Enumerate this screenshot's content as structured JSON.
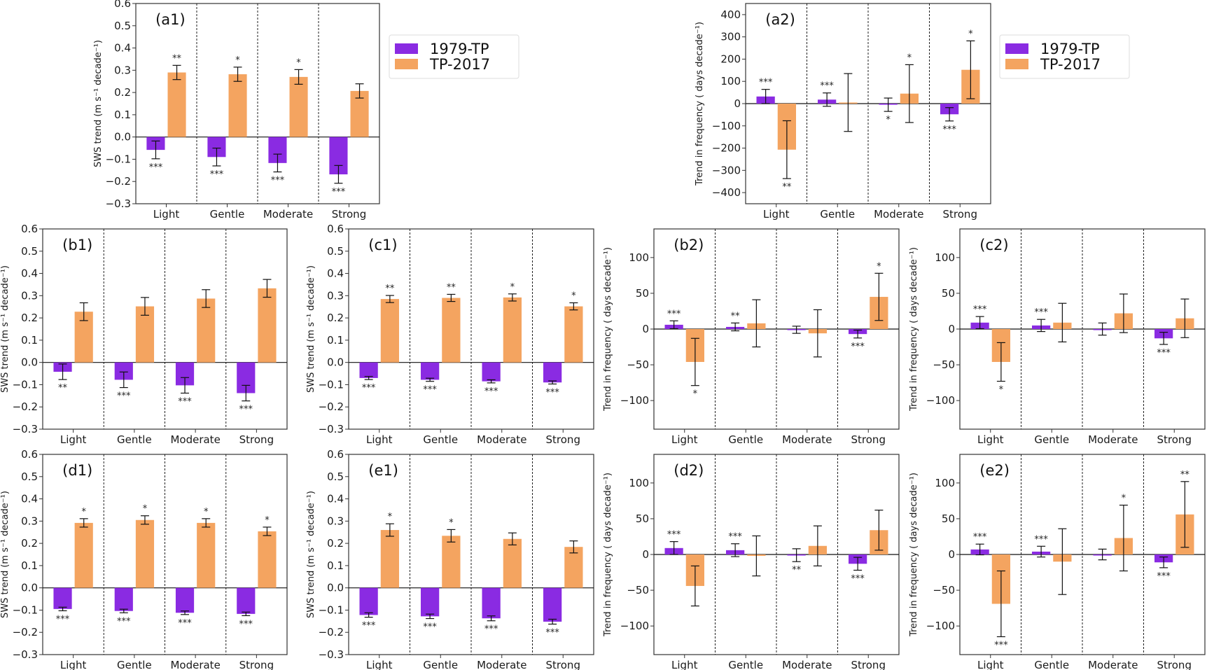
{
  "legend": [
    {
      "label": "1979-TP",
      "color": "#8a2be2"
    },
    {
      "label": "TP-2017",
      "color": "#f4a460"
    }
  ],
  "chart_data": [
    {
      "id": "a1",
      "type": "bar",
      "panel_label": "(a1)",
      "categories": [
        "Light",
        "Gentle",
        "Moderate",
        "Strong"
      ],
      "ylabel": "SWS trend (m s⁻¹ decade⁻¹)",
      "ylim": [
        -0.3,
        0.6
      ],
      "yticks": [
        -0.3,
        -0.2,
        -0.1,
        0.0,
        0.1,
        0.2,
        0.3,
        0.4,
        0.5,
        0.6
      ],
      "ytick_labels": [
        "−0.3",
        "−0.2",
        "−0.1",
        "0.0",
        "0.1",
        "0.2",
        "0.3",
        "0.4",
        "0.5",
        "0.6"
      ],
      "series": [
        {
          "name": "1979-TP",
          "values": [
            -0.058,
            -0.09,
            -0.117,
            -0.168
          ],
          "errors": [
            0.04,
            0.04,
            0.04,
            0.04
          ],
          "significance": [
            "***",
            "***",
            "***",
            "***"
          ]
        },
        {
          "name": "TP-2017",
          "values": [
            0.29,
            0.282,
            0.27,
            0.207
          ],
          "errors": [
            0.032,
            0.032,
            0.033,
            0.032
          ],
          "significance": [
            "**",
            "*",
            "*",
            ""
          ]
        }
      ]
    },
    {
      "id": "a2",
      "type": "bar",
      "panel_label": "(a2)",
      "categories": [
        "Light",
        "Gentle",
        "Moderate",
        "Strong"
      ],
      "ylabel": "Trend in frequency ( days decade⁻¹)",
      "ylim": [
        -450,
        450
      ],
      "yticks": [
        -400,
        -300,
        -200,
        -100,
        0,
        100,
        200,
        300,
        400
      ],
      "ytick_labels": [
        "−400",
        "−300",
        "−200",
        "−100",
        "0",
        "100",
        "200",
        "300",
        "400"
      ],
      "series": [
        {
          "name": "1979-TP",
          "values": [
            32,
            18,
            -5,
            -48
          ],
          "errors": [
            32,
            30,
            30,
            30
          ],
          "significance": [
            "***",
            "***",
            "*",
            "***"
          ]
        },
        {
          "name": "TP-2017",
          "values": [
            -207,
            5,
            45,
            152
          ],
          "errors": [
            130,
            130,
            130,
            130
          ],
          "significance": [
            "**",
            "",
            "*",
            "*"
          ]
        }
      ]
    },
    {
      "id": "b1",
      "type": "bar",
      "panel_label": "(b1)",
      "categories": [
        "Light",
        "Gentle",
        "Moderate",
        "Strong"
      ],
      "ylabel": "SWS trend (m s⁻¹ decade⁻¹)",
      "ylim": [
        -0.3,
        0.6
      ],
      "yticks": [
        -0.3,
        -0.2,
        -0.1,
        0.0,
        0.1,
        0.2,
        0.3,
        0.4,
        0.5,
        0.6
      ],
      "ytick_labels": [
        "−0.3",
        "−0.2",
        "−0.1",
        "0.0",
        "0.1",
        "0.2",
        "0.3",
        "0.4",
        "0.5",
        "0.6"
      ],
      "series": [
        {
          "name": "1979-TP",
          "values": [
            -0.042,
            -0.078,
            -0.103,
            -0.138
          ],
          "errors": [
            0.035,
            0.035,
            0.035,
            0.035
          ],
          "significance": [
            "**",
            "***",
            "***",
            "***"
          ]
        },
        {
          "name": "TP-2017",
          "values": [
            0.228,
            0.252,
            0.287,
            0.333
          ],
          "errors": [
            0.04,
            0.04,
            0.04,
            0.04
          ],
          "significance": [
            "",
            "",
            "",
            ""
          ]
        }
      ]
    },
    {
      "id": "c1",
      "type": "bar",
      "panel_label": "(c1)",
      "categories": [
        "Light",
        "Gentle",
        "Moderate",
        "Strong"
      ],
      "ylabel": "SWS trend (m s⁻¹ decade⁻¹)",
      "ylim": [
        -0.3,
        0.6
      ],
      "yticks": [
        -0.3,
        -0.2,
        -0.1,
        0.0,
        0.1,
        0.2,
        0.3,
        0.4,
        0.5,
        0.6
      ],
      "ytick_labels": [
        "−0.3",
        "−0.2",
        "−0.1",
        "0.0",
        "0.1",
        "0.2",
        "0.3",
        "0.4",
        "0.5",
        "0.6"
      ],
      "series": [
        {
          "name": "1979-TP",
          "values": [
            -0.07,
            -0.078,
            -0.085,
            -0.09
          ],
          "errors": [
            0.007,
            0.007,
            0.007,
            0.007
          ],
          "significance": [
            "***",
            "***",
            "***",
            "***"
          ]
        },
        {
          "name": "TP-2017",
          "values": [
            0.285,
            0.29,
            0.292,
            0.252
          ],
          "errors": [
            0.016,
            0.016,
            0.016,
            0.016
          ],
          "significance": [
            "**",
            "**",
            "*",
            "*"
          ]
        }
      ]
    },
    {
      "id": "b2",
      "type": "bar",
      "panel_label": "(b2)",
      "categories": [
        "Light",
        "Gentle",
        "Moderate",
        "Strong"
      ],
      "ylabel": "Trend in frequency ( days decade⁻¹)",
      "ylim": [
        -140,
        140
      ],
      "yticks": [
        -100,
        -50,
        0,
        50,
        100
      ],
      "ytick_labels": [
        "−100",
        "−50",
        "0",
        "50",
        "100"
      ],
      "series": [
        {
          "name": "1979-TP",
          "values": [
            6,
            3,
            -1,
            -7
          ],
          "errors": [
            5.5,
            5.5,
            5,
            5.5
          ],
          "significance": [
            "***",
            "**",
            "",
            "***"
          ]
        },
        {
          "name": "TP-2017",
          "values": [
            -46,
            8,
            -6,
            45
          ],
          "errors": [
            33,
            33,
            33,
            33
          ],
          "significance": [
            "*",
            "",
            "",
            "*"
          ]
        }
      ]
    },
    {
      "id": "c2",
      "type": "bar",
      "panel_label": "(c2)",
      "categories": [
        "Light",
        "Gentle",
        "Moderate",
        "Strong"
      ],
      "ylabel": "Trend in frequency ( days decade⁻¹)",
      "ylim": [
        -140,
        140
      ],
      "yticks": [
        -100,
        -50,
        0,
        50,
        100
      ],
      "ytick_labels": [
        "−100",
        "−50",
        "0",
        "50",
        "100"
      ],
      "series": [
        {
          "name": "1979-TP",
          "values": [
            9,
            5,
            0,
            -13
          ],
          "errors": [
            8.5,
            8.5,
            8.5,
            8.5
          ],
          "significance": [
            "***",
            "***",
            "",
            "***"
          ]
        },
        {
          "name": "TP-2017",
          "values": [
            -46,
            9,
            22,
            15
          ],
          "errors": [
            27,
            27,
            27,
            27
          ],
          "significance": [
            "*",
            "",
            "",
            ""
          ]
        }
      ]
    },
    {
      "id": "d1",
      "type": "bar",
      "panel_label": "(d1)",
      "categories": [
        "Light",
        "Gentle",
        "Moderate",
        "Strong"
      ],
      "ylabel": "SWS trend (m s⁻¹ decade⁻¹)",
      "ylim": [
        -0.3,
        0.6
      ],
      "yticks": [
        -0.3,
        -0.2,
        -0.1,
        0.0,
        0.1,
        0.2,
        0.3,
        0.4,
        0.5,
        0.6
      ],
      "ytick_labels": [
        "−0.3",
        "−0.2",
        "−0.1",
        "0.0",
        "0.1",
        "0.2",
        "0.3",
        "0.4",
        "0.5",
        "0.6"
      ],
      "series": [
        {
          "name": "1979-TP",
          "values": [
            -0.095,
            -0.104,
            -0.112,
            -0.117
          ],
          "errors": [
            0.008,
            0.008,
            0.008,
            0.008
          ],
          "significance": [
            "***",
            "***",
            "***",
            "***"
          ]
        },
        {
          "name": "TP-2017",
          "values": [
            0.292,
            0.305,
            0.292,
            0.254
          ],
          "errors": [
            0.019,
            0.019,
            0.019,
            0.019
          ],
          "significance": [
            "*",
            "*",
            "*",
            "*"
          ]
        }
      ]
    },
    {
      "id": "e1",
      "type": "bar",
      "panel_label": "(e1)",
      "categories": [
        "Light",
        "Gentle",
        "Moderate",
        "Strong"
      ],
      "ylabel": "SWS trend (m s⁻¹ decade⁻¹)",
      "ylim": [
        -0.3,
        0.6
      ],
      "yticks": [
        -0.3,
        -0.2,
        -0.1,
        0.0,
        0.1,
        0.2,
        0.3,
        0.4,
        0.5,
        0.6
      ],
      "ytick_labels": [
        "−0.3",
        "−0.2",
        "−0.1",
        "0.0",
        "0.1",
        "0.2",
        "0.3",
        "0.4",
        "0.5",
        "0.6"
      ],
      "series": [
        {
          "name": "1979-TP",
          "values": [
            -0.122,
            -0.128,
            -0.137,
            -0.152
          ],
          "errors": [
            0.01,
            0.01,
            0.011,
            0.011
          ],
          "significance": [
            "***",
            "***",
            "***",
            "***"
          ]
        },
        {
          "name": "TP-2017",
          "values": [
            0.26,
            0.234,
            0.22,
            0.184
          ],
          "errors": [
            0.028,
            0.028,
            0.027,
            0.027
          ],
          "significance": [
            "*",
            "*",
            "",
            ""
          ]
        }
      ]
    },
    {
      "id": "d2",
      "type": "bar",
      "panel_label": "(d2)",
      "categories": [
        "Light",
        "Gentle",
        "Moderate",
        "Strong"
      ],
      "ylabel": "Trend in frequency ( days decade⁻¹)",
      "ylim": [
        -140,
        140
      ],
      "yticks": [
        -100,
        -50,
        0,
        50,
        100
      ],
      "ytick_labels": [
        "−100",
        "−50",
        "0",
        "50",
        "100"
      ],
      "series": [
        {
          "name": "1979-TP",
          "values": [
            9,
            6,
            -1,
            -13
          ],
          "errors": [
            9,
            9,
            9,
            9
          ],
          "significance": [
            "***",
            "***",
            "**",
            "***"
          ]
        },
        {
          "name": "TP-2017",
          "values": [
            -44,
            -2,
            12,
            34
          ],
          "errors": [
            28,
            28,
            28,
            28
          ],
          "significance": [
            "",
            "",
            "",
            ""
          ]
        }
      ]
    },
    {
      "id": "e2",
      "type": "bar",
      "panel_label": "(e2)",
      "categories": [
        "Light",
        "Gentle",
        "Moderate",
        "Strong"
      ],
      "ylabel": "Trend in frequency ( days decade⁻¹)",
      "ylim": [
        -140,
        140
      ],
      "yticks": [
        -100,
        -50,
        0,
        50,
        100
      ],
      "ytick_labels": [
        "−100",
        "−50",
        "0",
        "50",
        "100"
      ],
      "series": [
        {
          "name": "1979-TP",
          "values": [
            7,
            4,
            0,
            -11
          ],
          "errors": [
            7.5,
            7.5,
            7.5,
            7.5
          ],
          "significance": [
            "***",
            "***",
            "",
            "***"
          ]
        },
        {
          "name": "TP-2017",
          "values": [
            -69,
            -10,
            23,
            56
          ],
          "errors": [
            46,
            46,
            46,
            46
          ],
          "significance": [
            "***",
            "",
            "*",
            "**"
          ]
        }
      ]
    }
  ]
}
